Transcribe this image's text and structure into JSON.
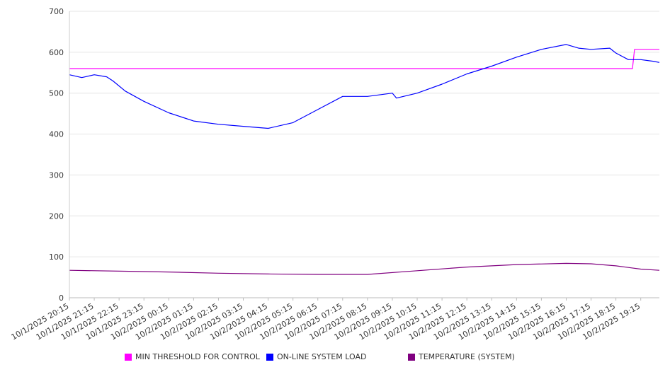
{
  "chart_data": {
    "type": "line",
    "title": "",
    "xlabel": "",
    "ylabel": "",
    "ylim": [
      0,
      700
    ],
    "yticks": [
      0,
      100,
      200,
      300,
      400,
      500,
      600,
      700
    ],
    "grid": true,
    "legend_position": "bottom",
    "xlim": [
      "10/1/2025 20:15",
      "10/2/2025 20:00"
    ],
    "xtick_labels": [
      "10/1/2025 20:15",
      "10/1/2025 21:15",
      "10/1/2025 22:15",
      "10/1/2025 23:15",
      "10/2/2025 00:15",
      "10/2/2025 01:15",
      "10/2/2025 02:15",
      "10/2/2025 03:15",
      "10/2/2025 04:15",
      "10/2/2025 05:15",
      "10/2/2025 06:15",
      "10/2/2025 07:15",
      "10/2/2025 08:15",
      "10/2/2025 09:15",
      "10/2/2025 10:15",
      "10/2/2025 11:15",
      "10/2/2025 12:15",
      "10/2/2025 13:15",
      "10/2/2025 14:15",
      "10/2/2025 15:15",
      "10/2/2025 16:15",
      "10/2/2025 17:15",
      "10/2/2025 18:15",
      "10/2/2025 19:15"
    ],
    "series": [
      {
        "name": "MIN THRESHOLD FOR CONTROL",
        "color": "#ff00ff",
        "points": [
          [
            "10/1/2025 20:15",
            560
          ],
          [
            "10/2/2025 18:55",
            560
          ],
          [
            "10/2/2025 19:00",
            607
          ],
          [
            "10/2/2025 20:00",
            607
          ]
        ]
      },
      {
        "name": "ON-LINE SYSTEM LOAD",
        "color": "#0000ff",
        "points": [
          [
            "10/1/2025 20:15",
            545
          ],
          [
            "10/1/2025 20:45",
            538
          ],
          [
            "10/1/2025 21:15",
            545
          ],
          [
            "10/1/2025 21:45",
            540
          ],
          [
            "10/1/2025 22:00",
            530
          ],
          [
            "10/1/2025 22:30",
            505
          ],
          [
            "10/1/2025 23:15",
            480
          ],
          [
            "10/2/2025 00:15",
            452
          ],
          [
            "10/2/2025 01:15",
            432
          ],
          [
            "10/2/2025 02:15",
            424
          ],
          [
            "10/2/2025 03:15",
            419
          ],
          [
            "10/2/2025 04:15",
            414
          ],
          [
            "10/2/2025 05:15",
            428
          ],
          [
            "10/2/2025 06:15",
            460
          ],
          [
            "10/2/2025 07:15",
            492
          ],
          [
            "10/2/2025 08:15",
            492
          ],
          [
            "10/2/2025 09:15",
            500
          ],
          [
            "10/2/2025 09:25",
            488
          ],
          [
            "10/2/2025 10:15",
            500
          ],
          [
            "10/2/2025 11:15",
            522
          ],
          [
            "10/2/2025 12:15",
            547
          ],
          [
            "10/2/2025 13:15",
            566
          ],
          [
            "10/2/2025 14:15",
            588
          ],
          [
            "10/2/2025 15:15",
            607
          ],
          [
            "10/2/2025 16:15",
            619
          ],
          [
            "10/2/2025 16:45",
            610
          ],
          [
            "10/2/2025 17:15",
            607
          ],
          [
            "10/2/2025 18:00",
            610
          ],
          [
            "10/2/2025 18:15",
            598
          ],
          [
            "10/2/2025 18:45",
            582
          ],
          [
            "10/2/2025 19:15",
            582
          ],
          [
            "10/2/2025 19:45",
            578
          ],
          [
            "10/2/2025 20:00",
            575
          ]
        ]
      },
      {
        "name": "TEMPERATURE (SYSTEM)",
        "color": "#800080",
        "points": [
          [
            "10/1/2025 20:15",
            67
          ],
          [
            "10/1/2025 22:15",
            65
          ],
          [
            "10/2/2025 00:15",
            63
          ],
          [
            "10/2/2025 02:15",
            60
          ],
          [
            "10/2/2025 04:15",
            58
          ],
          [
            "10/2/2025 06:15",
            57
          ],
          [
            "10/2/2025 08:15",
            57
          ],
          [
            "10/2/2025 10:15",
            66
          ],
          [
            "10/2/2025 12:15",
            75
          ],
          [
            "10/2/2025 14:15",
            81
          ],
          [
            "10/2/2025 16:15",
            84
          ],
          [
            "10/2/2025 17:15",
            83
          ],
          [
            "10/2/2025 18:15",
            78
          ],
          [
            "10/2/2025 19:15",
            70
          ],
          [
            "10/2/2025 20:00",
            67
          ]
        ]
      }
    ]
  }
}
